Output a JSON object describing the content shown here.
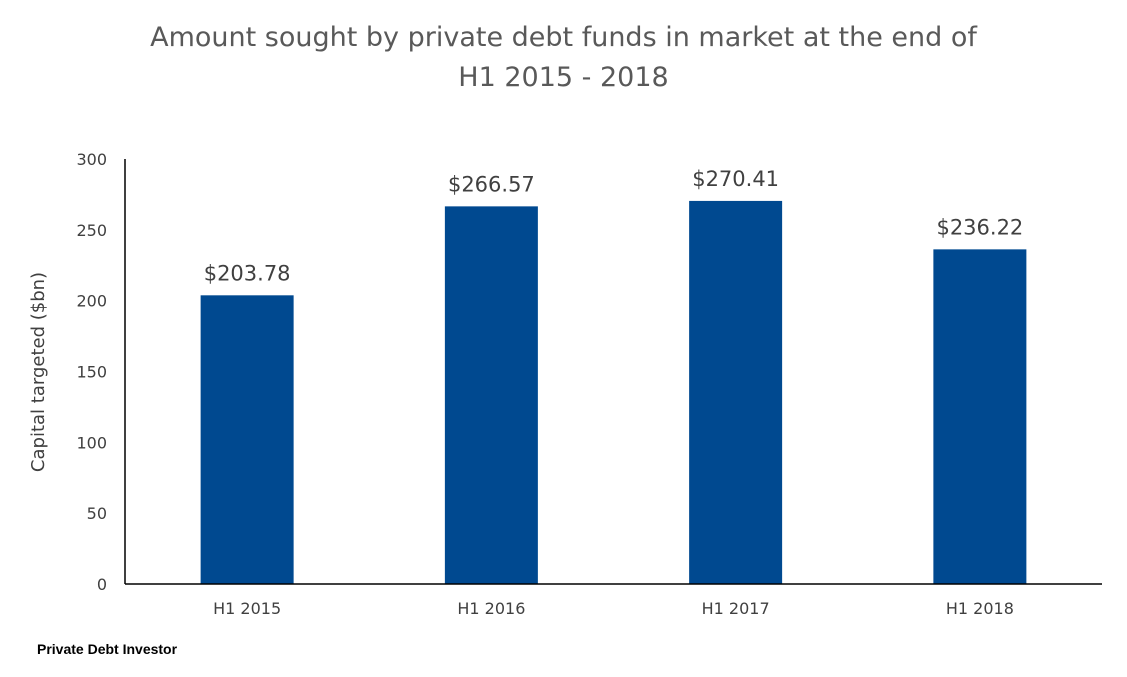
{
  "chart_data": {
    "type": "bar",
    "title_lines": [
      "Amount sought by private debt funds in market at the end of",
      "H1 2015 - 2018"
    ],
    "categories": [
      "H1 2015",
      "H1 2016",
      "H1 2017",
      "H1 2018"
    ],
    "values": [
      203.78,
      266.57,
      270.41,
      236.22
    ],
    "data_labels": [
      "$203.78",
      "$266.57",
      "$270.41",
      "$236.22"
    ],
    "ylabel": "Capital targeted ($bn)",
    "xlabel": "",
    "ylim": [
      0,
      300
    ],
    "yticks": [
      0,
      50,
      100,
      150,
      200,
      250,
      300
    ],
    "grid": false,
    "bar_color": "#004990"
  },
  "source": "Private Debt Investor"
}
